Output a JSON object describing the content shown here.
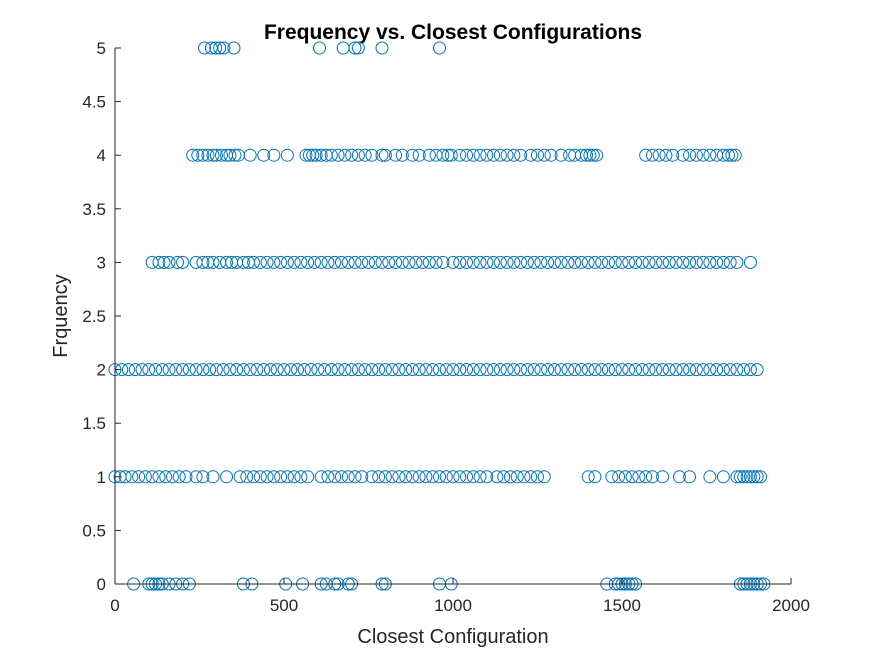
{
  "chart_data": {
    "type": "scatter",
    "title": "Frequency vs. Closest Configurations",
    "xlabel": "Closest Configuration",
    "ylabel": "Frquency",
    "xlim": [
      0,
      2000
    ],
    "ylim": [
      0,
      5
    ],
    "xticks": [
      "0",
      "500",
      "1000",
      "1500",
      "2000"
    ],
    "yticks": [
      "0",
      "0.5",
      "1",
      "1.5",
      "2",
      "2.5",
      "3",
      "3.5",
      "4",
      "4.5",
      "5"
    ],
    "grid": false,
    "legend": "none",
    "marker": "open-circle",
    "marker_color": "#0072BD",
    "series": [
      {
        "y": 5,
        "x": [
          265,
          285,
          298,
          310,
          322,
          352,
          605,
          675,
          710,
          720,
          790,
          960
        ]
      },
      {
        "y": 4,
        "x": [
          230,
          245,
          260,
          275,
          290,
          300,
          315,
          330,
          340,
          355,
          365,
          400,
          440,
          470,
          510,
          565,
          575,
          585,
          595,
          610,
          625,
          640,
          660,
          680,
          700,
          720,
          740,
          760,
          790,
          800,
          830,
          850,
          880,
          900,
          930,
          950,
          970,
          985,
          995,
          1020,
          1040,
          1060,
          1080,
          1100,
          1120,
          1140,
          1160,
          1180,
          1200,
          1230,
          1250,
          1270,
          1290,
          1320,
          1345,
          1360,
          1380,
          1395,
          1405,
          1415,
          1425,
          1570,
          1590,
          1610,
          1630,
          1650,
          1680,
          1700,
          1720,
          1740,
          1760,
          1780,
          1800,
          1815,
          1825,
          1835
        ]
      },
      {
        "y": 3,
        "x": [
          110,
          130,
          145,
          160,
          185,
          200,
          240,
          260,
          275,
          290,
          310,
          330,
          345,
          360,
          380,
          395,
          410,
          430,
          450,
          470,
          490,
          510,
          530,
          550,
          570,
          590,
          610,
          630,
          650,
          670,
          690,
          710,
          730,
          750,
          770,
          790,
          810,
          830,
          850,
          870,
          890,
          910,
          930,
          950,
          970,
          1000,
          1020,
          1040,
          1060,
          1080,
          1100,
          1120,
          1140,
          1160,
          1180,
          1200,
          1220,
          1240,
          1260,
          1280,
          1300,
          1320,
          1340,
          1360,
          1380,
          1400,
          1420,
          1440,
          1460,
          1480,
          1500,
          1520,
          1540,
          1560,
          1580,
          1600,
          1620,
          1640,
          1660,
          1680,
          1700,
          1720,
          1740,
          1760,
          1780,
          1800,
          1820,
          1840,
          1880
        ]
      },
      {
        "y": 2,
        "x": [
          0,
          20,
          40,
          60,
          80,
          100,
          120,
          140,
          160,
          180,
          200,
          220,
          240,
          260,
          280,
          300,
          320,
          340,
          360,
          380,
          400,
          420,
          440,
          460,
          480,
          500,
          520,
          540,
          560,
          580,
          600,
          620,
          640,
          660,
          680,
          700,
          720,
          740,
          760,
          780,
          800,
          820,
          840,
          860,
          880,
          900,
          920,
          940,
          960,
          980,
          1000,
          1020,
          1040,
          1060,
          1080,
          1100,
          1120,
          1140,
          1160,
          1180,
          1200,
          1220,
          1240,
          1260,
          1280,
          1300,
          1320,
          1340,
          1360,
          1380,
          1400,
          1420,
          1440,
          1460,
          1480,
          1500,
          1520,
          1540,
          1560,
          1580,
          1600,
          1620,
          1640,
          1660,
          1680,
          1700,
          1720,
          1740,
          1760,
          1780,
          1800,
          1820,
          1840,
          1860,
          1880,
          1900
        ]
      },
      {
        "y": 1,
        "x": [
          0,
          15,
          30,
          50,
          70,
          90,
          110,
          130,
          150,
          170,
          190,
          210,
          240,
          260,
          290,
          330,
          370,
          390,
          410,
          430,
          450,
          470,
          490,
          510,
          530,
          550,
          570,
          610,
          630,
          650,
          670,
          690,
          710,
          730,
          760,
          780,
          800,
          820,
          840,
          860,
          880,
          900,
          920,
          940,
          960,
          980,
          1000,
          1020,
          1040,
          1060,
          1080,
          1100,
          1130,
          1150,
          1170,
          1190,
          1210,
          1230,
          1250,
          1270,
          1400,
          1420,
          1470,
          1490,
          1510,
          1530,
          1550,
          1570,
          1590,
          1620,
          1670,
          1700,
          1760,
          1800,
          1840,
          1850,
          1860,
          1870,
          1880,
          1890,
          1900,
          1910
        ]
      },
      {
        "y": 0,
        "x": [
          55,
          100,
          110,
          120,
          130,
          140,
          160,
          180,
          200,
          220,
          380,
          405,
          505,
          555,
          610,
          625,
          650,
          660,
          690,
          700,
          790,
          800,
          960,
          995,
          1455,
          1480,
          1490,
          1500,
          1510,
          1520,
          1530,
          1540,
          1850,
          1860,
          1870,
          1880,
          1890,
          1900,
          1910,
          1920
        ]
      }
    ]
  }
}
